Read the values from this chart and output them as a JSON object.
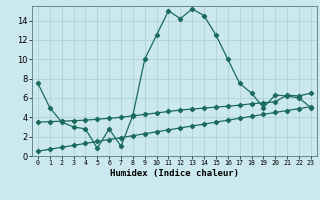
{
  "xlabel": "Humidex (Indice chaleur)",
  "x_ticks": [
    0,
    1,
    2,
    3,
    4,
    5,
    6,
    7,
    8,
    9,
    10,
    11,
    12,
    13,
    14,
    15,
    16,
    17,
    18,
    19,
    20,
    21,
    22,
    23
  ],
  "x_tick_labels": [
    "0",
    "1",
    "2",
    "3",
    "4",
    "5",
    "6",
    "7",
    "8",
    "9",
    "10",
    "11",
    "12",
    "13",
    "14",
    "15",
    "16",
    "17",
    "18",
    "19",
    "20",
    "21",
    "22",
    "23"
  ],
  "ylim": [
    0,
    15.5
  ],
  "xlim": [
    -0.5,
    23.5
  ],
  "y_ticks": [
    0,
    2,
    4,
    6,
    8,
    10,
    12,
    14
  ],
  "line1_x": [
    0,
    1,
    2,
    3,
    4,
    5,
    6,
    7,
    8,
    9,
    10,
    11,
    12,
    13,
    14,
    15,
    16,
    17,
    18,
    19,
    20,
    21,
    22,
    23
  ],
  "line1_y": [
    7.5,
    5.0,
    3.5,
    3.0,
    2.8,
    0.8,
    2.8,
    1.0,
    4.2,
    10.0,
    12.5,
    15.0,
    14.2,
    15.2,
    14.5,
    12.5,
    10.0,
    7.5,
    6.5,
    5.0,
    6.3,
    6.2,
    6.0,
    5.0
  ],
  "line2_x": [
    0,
    1,
    2,
    3,
    4,
    5,
    6,
    7,
    8,
    9,
    10,
    11,
    12,
    13,
    14,
    15,
    16,
    17,
    18,
    19,
    20,
    21,
    22,
    23
  ],
  "line2_y": [
    3.5,
    3.55,
    3.6,
    3.65,
    3.7,
    3.8,
    3.9,
    4.0,
    4.15,
    4.3,
    4.45,
    4.6,
    4.75,
    4.85,
    4.95,
    5.05,
    5.15,
    5.25,
    5.4,
    5.5,
    5.6,
    6.3,
    6.2,
    6.5
  ],
  "line3_x": [
    0,
    1,
    2,
    3,
    4,
    5,
    6,
    7,
    8,
    9,
    10,
    11,
    12,
    13,
    14,
    15,
    16,
    17,
    18,
    19,
    20,
    21,
    22,
    23
  ],
  "line3_y": [
    0.5,
    0.7,
    0.9,
    1.1,
    1.3,
    1.5,
    1.7,
    1.9,
    2.1,
    2.3,
    2.5,
    2.7,
    2.9,
    3.1,
    3.3,
    3.5,
    3.7,
    3.9,
    4.1,
    4.3,
    4.5,
    4.7,
    4.9,
    5.1
  ],
  "line_color": "#1a6b5a",
  "bg_color": "#cce8ef",
  "grid_color": "#aacdd6",
  "marker": "D",
  "marker_size": 2.2,
  "linewidth": 0.9
}
